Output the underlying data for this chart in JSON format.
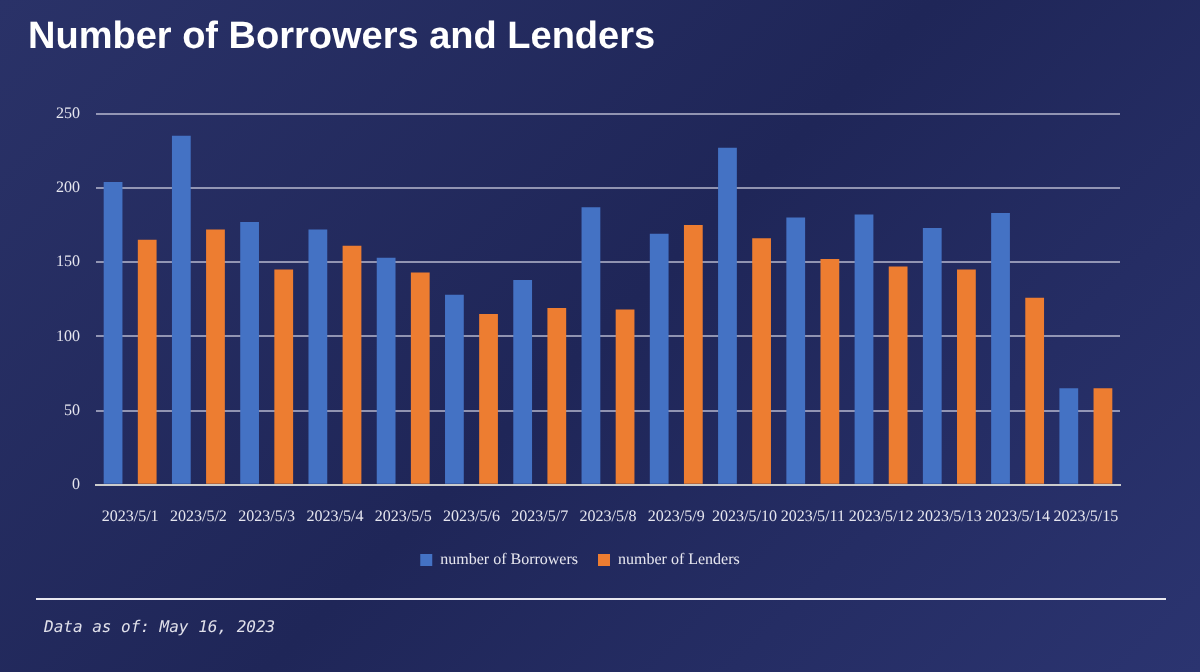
{
  "chart_data": {
    "type": "bar",
    "title": "Number of Borrowers and Lenders",
    "categories": [
      "2023/5/1",
      "2023/5/2",
      "2023/5/3",
      "2023/5/4",
      "2023/5/5",
      "2023/5/6",
      "2023/5/7",
      "2023/5/8",
      "2023/5/9",
      "2023/5/10",
      "2023/5/11",
      "2023/5/12",
      "2023/5/13",
      "2023/5/14",
      "2023/5/15"
    ],
    "series": [
      {
        "name": "number of Borrowers",
        "color": "#4472c4",
        "values": [
          204,
          235,
          177,
          172,
          153,
          128,
          138,
          187,
          169,
          227,
          180,
          182,
          173,
          183,
          65
        ]
      },
      {
        "name": "number of Lenders",
        "color": "#ed7d31",
        "values": [
          165,
          172,
          145,
          161,
          143,
          115,
          119,
          118,
          175,
          166,
          152,
          147,
          145,
          126,
          65
        ]
      }
    ],
    "ylim": [
      0,
      250
    ],
    "yticks": [
      0,
      50,
      100,
      150,
      200,
      250
    ],
    "grid": "y",
    "legend": "bottom",
    "annotations": [
      "Data as of: May 16, 2023"
    ]
  }
}
